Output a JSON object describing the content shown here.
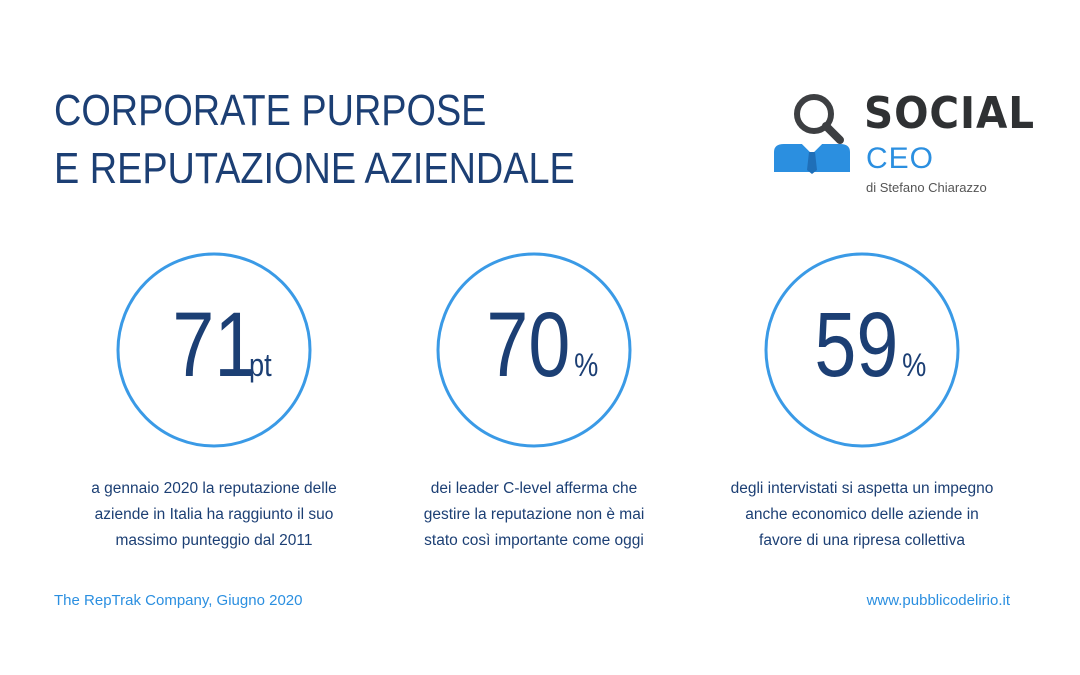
{
  "title": {
    "line1": "CORPORATE PURPOSE",
    "line2": "E REPUTAZIONE AZIENDALE"
  },
  "logo": {
    "word1": "SOCIAL",
    "word2": "CEO",
    "byline": "di Stefano Chiarazzo",
    "icons": [
      "magnifier-icon",
      "suit-tie-icon"
    ]
  },
  "stats": [
    {
      "number": "71",
      "unit": "pt",
      "lines": [
        "a gennaio 2020 la reputazione delle",
        "aziende in Italia ha raggiunto il suo",
        "massimo punteggio dal 2011"
      ]
    },
    {
      "number": "70",
      "unit": "%",
      "lines": [
        "dei leader C-level afferma che",
        "gestire la reputazione non è mai",
        "stato così importante come oggi"
      ]
    },
    {
      "number": "59",
      "unit": "%",
      "lines": [
        "degli intervistati si aspetta un impegno",
        "anche economico delle aziende in",
        "favore di una ripresa collettiva"
      ]
    }
  ],
  "footer": {
    "source": "The RepTrak Company, Giugno 2020",
    "website": "www.pubblicodelirio.it"
  },
  "colors": {
    "navy": "#1c3f74",
    "accent_blue": "#2b8fe0",
    "ring_blue": "#3a9ae6",
    "logo_grey": "#2f3133"
  }
}
